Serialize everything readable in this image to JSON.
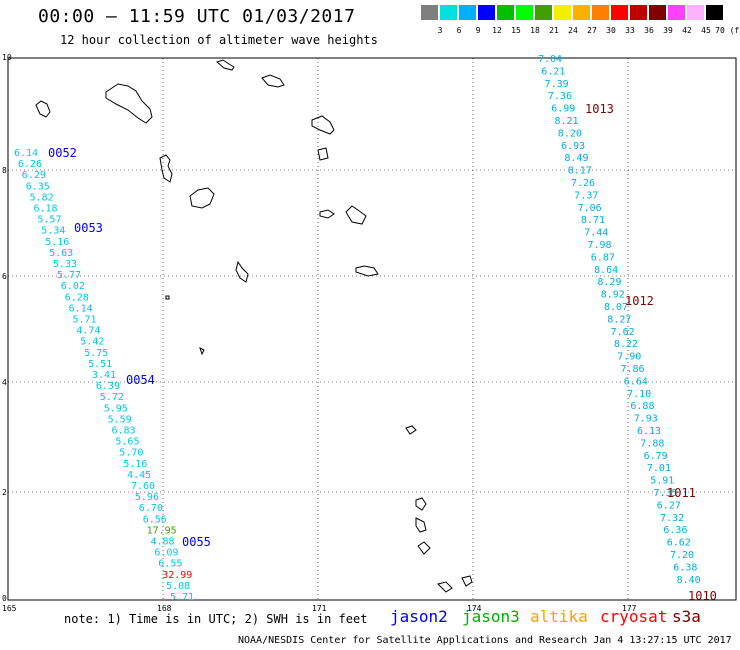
{
  "header": {
    "title": "00:00 — 11:59 UTC 01/03/2017",
    "subtitle": "12 hour collection of altimeter wave heights"
  },
  "colorbar": {
    "colors": [
      "#7f7f7f",
      "#00e0e0",
      "#00b0ff",
      "#0000ff",
      "#00c000",
      "#00ff00",
      "#40a000",
      "#f0f000",
      "#ffb000",
      "#ff8000",
      "#ff0000",
      "#c00000",
      "#800000",
      "#ff40ff",
      "#ffb0ff",
      "#000000"
    ],
    "labels": [
      "3",
      "6",
      "9",
      "12",
      "15",
      "18",
      "21",
      "24",
      "27",
      "30",
      "33",
      "36",
      "39",
      "42",
      "45",
      "70 (ft)"
    ]
  },
  "axes": {
    "x_ticks": [
      "165",
      "168",
      "171",
      "174",
      "177"
    ],
    "y_ticks": [
      "10",
      "8",
      "6",
      "4",
      "2",
      "0"
    ]
  },
  "passes": [
    {
      "id": "0052",
      "color": "#0000ff"
    },
    {
      "id": "0053",
      "color": "#0000ff"
    },
    {
      "id": "0054",
      "color": "#0000ff"
    },
    {
      "id": "0055",
      "color": "#0000ff"
    },
    {
      "id": "1013",
      "color": "#800000"
    },
    {
      "id": "1012",
      "color": "#800000"
    },
    {
      "id": "1011",
      "color": "#800000"
    },
    {
      "id": "1010",
      "color": "#800000"
    }
  ],
  "track_west": {
    "values": [
      "6.14",
      "6.26",
      "6.29",
      "6.35",
      "5.82",
      "6.18",
      "5.57",
      "5.34",
      "5.16",
      "5.63",
      "5.33",
      "5.77",
      "6.02",
      "6.28",
      "6.14",
      "5.71",
      "4.74",
      "5.42",
      "5.75",
      "5.51",
      "3.41",
      "6.39",
      "5.72",
      "5.95",
      "5.59",
      "6.83",
      "5.65",
      "5.70",
      "5.16",
      "4.45",
      "7.60",
      "5.96",
      "6.70",
      "6.56",
      "17.95",
      "4.88",
      "6.09",
      "6.55",
      "32.99",
      "5.08",
      "5.71"
    ],
    "colors": [
      "#00c8e8",
      "#00c8e8",
      "#00c8e8",
      "#00c8e8",
      "#00c8e8",
      "#00c8e8",
      "#00c8e8",
      "#00c8e8",
      "#00c8e8",
      "#00c8e8",
      "#00c8e8",
      "#00c8e8",
      "#00c8e8",
      "#00c8e8",
      "#00c8e8",
      "#00c8e8",
      "#00c8e8",
      "#00c8e8",
      "#00c8e8",
      "#00c8e8",
      "#00c8e8",
      "#00c8e8",
      "#00c8e8",
      "#00c8e8",
      "#00c8e8",
      "#00c8e8",
      "#00c8e8",
      "#00c8e8",
      "#00c8e8",
      "#00c8e8",
      "#00c8e8",
      "#00c8e8",
      "#00c8e8",
      "#00c8e8",
      "#40a000",
      "#00c8e8",
      "#00c8e8",
      "#00c8e8",
      "#ff0000",
      "#00c8e8",
      "#00c8e8"
    ]
  },
  "track_east": {
    "values": [
      "7.04",
      "6.21",
      "7.39",
      "7.36",
      "6.99",
      "8.21",
      "8.20",
      "6.93",
      "8.49",
      "8.17",
      "7.26",
      "7.37",
      "7.06",
      "8.71",
      "7.44",
      "7.98",
      "6.87",
      "8.64",
      "8.29",
      "8.92",
      "8.07",
      "8.27",
      "7.62",
      "8.22",
      "7.90",
      "7.86",
      "6.64",
      "7.10",
      "6.88",
      "7.93",
      "6.13",
      "7.88",
      "6.79",
      "7.01",
      "5.91",
      "7.35",
      "6.27",
      "7.32",
      "6.36",
      "6.62",
      "7.20",
      "6.38",
      "8.40"
    ]
  },
  "legend": {
    "note": "note: 1) Time is in UTC; 2) SWH is in feet",
    "jason2": {
      "label": "jason2",
      "color": "#0000ff"
    },
    "jason3": {
      "label": "jason3",
      "color": "#00b000"
    },
    "altika": {
      "label": "altika",
      "color": "#ffa000"
    },
    "cryosat": {
      "label": "cryosat",
      "color": "#ff0000"
    },
    "s3a": {
      "label": "s3a",
      "color": "#800000"
    }
  },
  "credit": "NOAA/NESDIS Center for Satellite Applications and Research   Jan  4 13:27:15 UTC 2017"
}
